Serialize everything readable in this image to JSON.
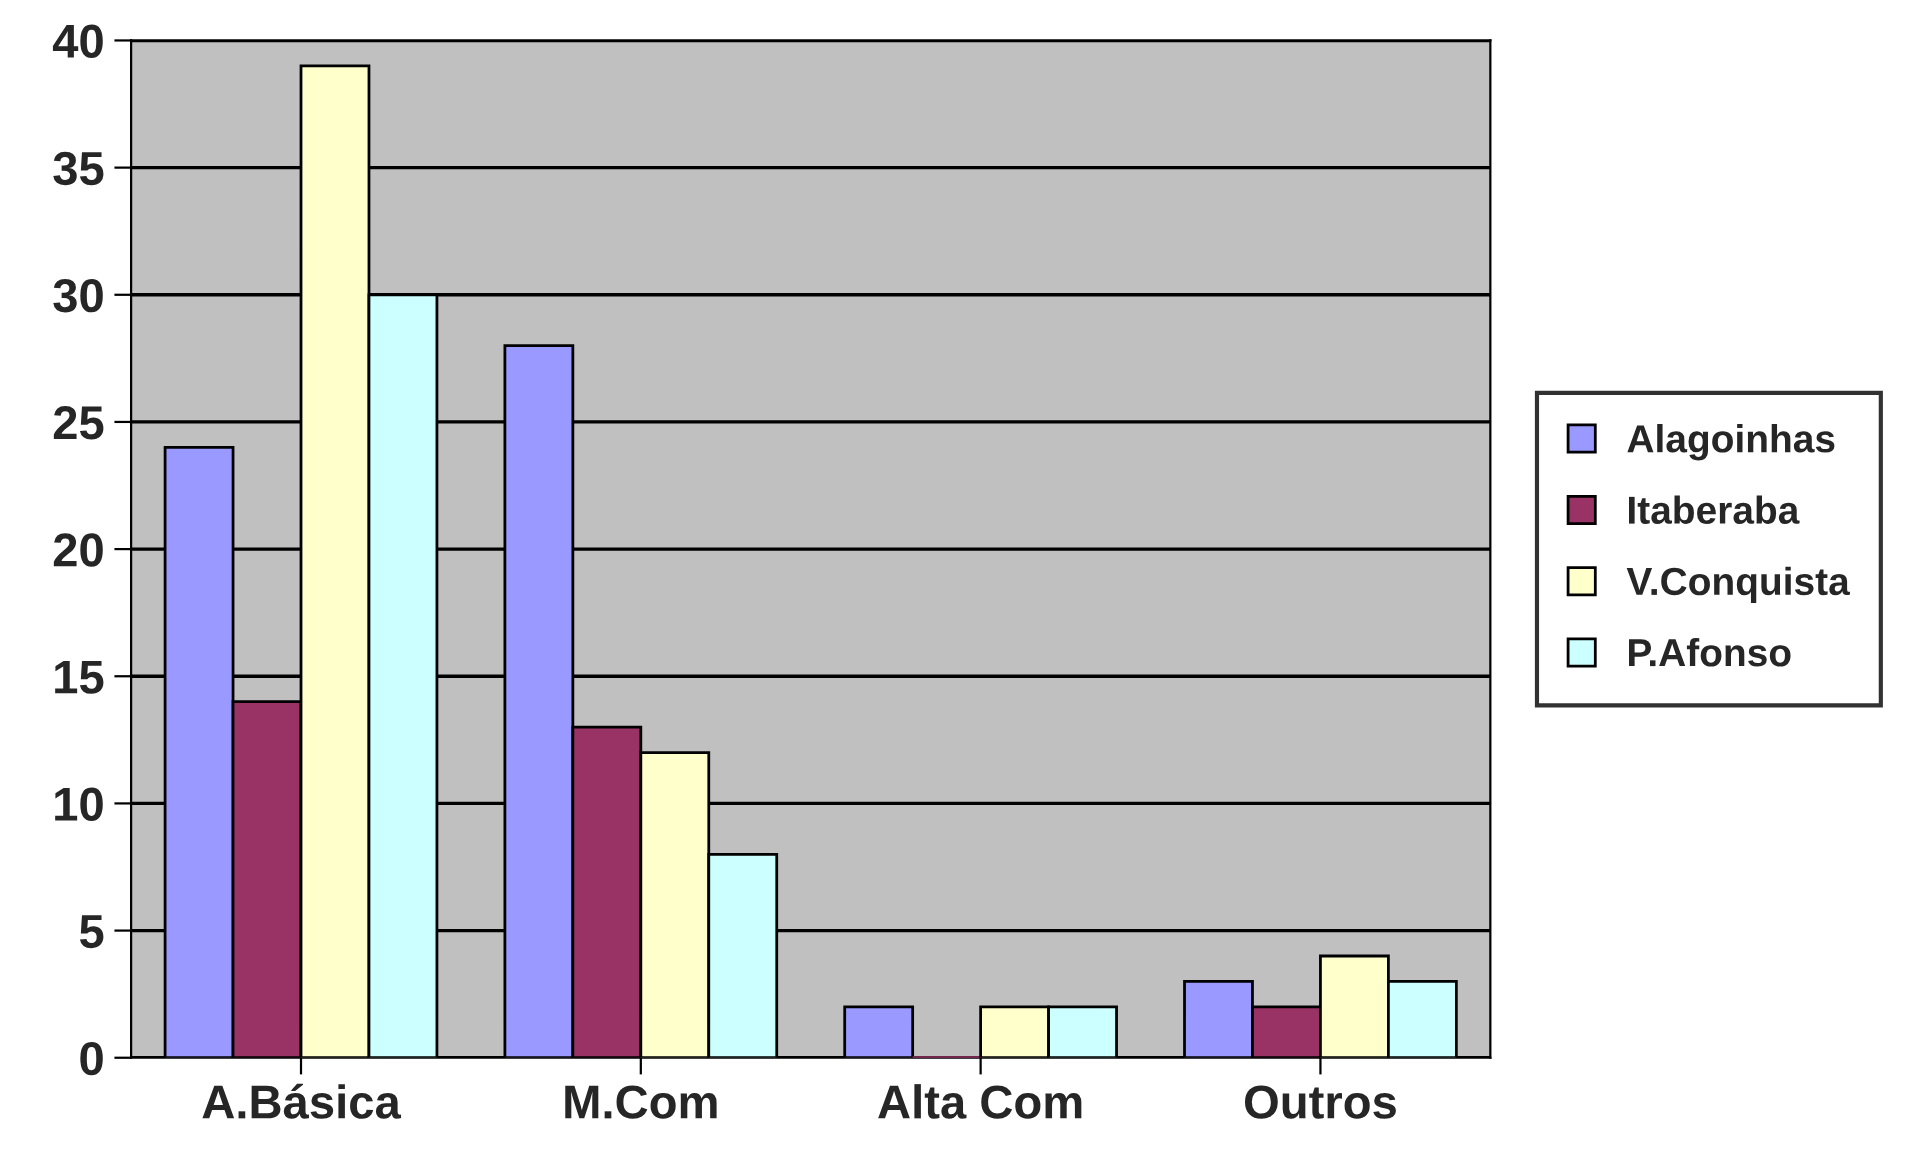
{
  "chart_data": {
    "type": "bar",
    "categories": [
      "A.Básica",
      "M.Com",
      "Alta Com",
      "Outros"
    ],
    "series": [
      {
        "name": "Alagoinhas",
        "color": "#9999ff",
        "values": [
          24,
          28,
          2,
          3
        ]
      },
      {
        "name": "Itaberaba",
        "color": "#993366",
        "values": [
          14,
          13,
          0,
          2
        ]
      },
      {
        "name": "V.Conquista",
        "color": "#ffffcc",
        "values": [
          39,
          12,
          2,
          4
        ]
      },
      {
        "name": "P.Afonso",
        "color": "#ccffff",
        "values": [
          30,
          8,
          2,
          3
        ]
      }
    ],
    "ylim": [
      0,
      40
    ],
    "yticks": [
      0,
      5,
      10,
      15,
      20,
      25,
      30,
      35,
      40
    ],
    "grid": "y",
    "legend": "right"
  }
}
